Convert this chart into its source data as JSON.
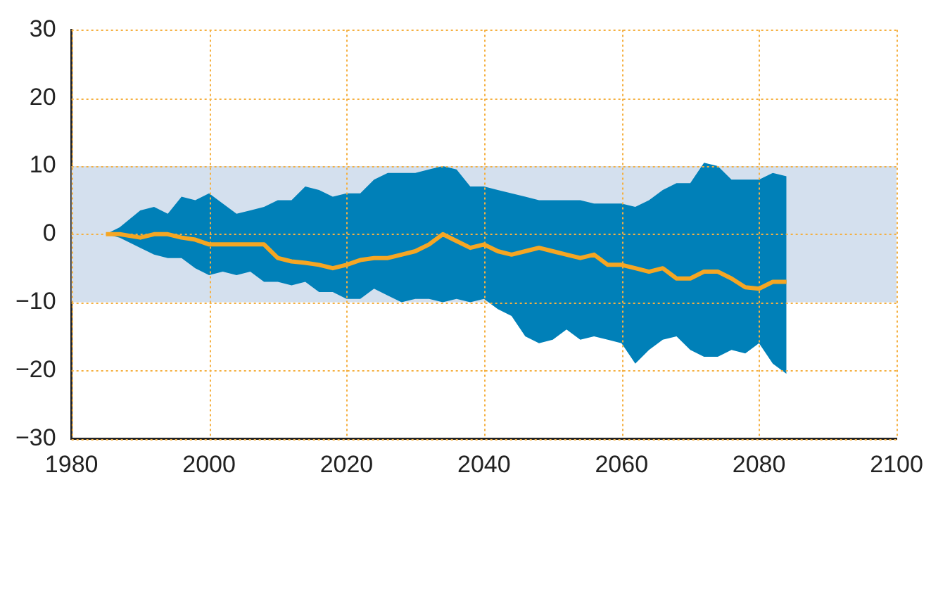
{
  "chart_data": {
    "type": "line",
    "xlim": [
      1980,
      2100
    ],
    "xticks": [
      1980,
      2000,
      2020,
      2040,
      2060,
      2080,
      2100
    ],
    "ylim": [
      -30,
      30
    ],
    "yticks": [
      -30,
      -20,
      -10,
      0,
      10,
      20,
      30
    ],
    "grid": true,
    "legend": false,
    "bands": [
      {
        "axis": "y",
        "from": -10,
        "to": 10,
        "color": "#d4e0ee"
      }
    ],
    "x": [
      1985,
      1987,
      1990,
      1992,
      1994,
      1996,
      1998,
      2000,
      2002,
      2004,
      2006,
      2008,
      2010,
      2012,
      2014,
      2016,
      2018,
      2020,
      2022,
      2024,
      2026,
      2028,
      2030,
      2032,
      2034,
      2036,
      2038,
      2040,
      2042,
      2044,
      2046,
      2048,
      2050,
      2052,
      2054,
      2056,
      2058,
      2060,
      2062,
      2064,
      2066,
      2068,
      2070,
      2072,
      2074,
      2076,
      2078,
      2080,
      2082,
      2084
    ],
    "series": [
      {
        "color": "#f5a623",
        "values": [
          0,
          0,
          -0.5,
          0,
          0,
          -0.5,
          -0.8,
          -1.5,
          -1.5,
          -1.5,
          -1.5,
          -1.5,
          -3.5,
          -4,
          -4.2,
          -4.5,
          -5,
          -4.5,
          -3.8,
          -3.5,
          -3.5,
          -3,
          -2.5,
          -1.5,
          0,
          -1,
          -2,
          -1.5,
          -2.5,
          -3,
          -2.5,
          -2,
          -2.5,
          -3,
          -3.5,
          -3,
          -4.5,
          -4.5,
          -5,
          -5.5,
          -5,
          -6.5,
          -6.5,
          -5.5,
          -5.5,
          -6.5,
          -7.8,
          -8,
          -7,
          -7
        ],
        "upper": [
          0,
          1,
          3.5,
          4,
          3,
          5.5,
          5,
          6,
          4.5,
          3,
          3.5,
          4,
          5,
          5,
          7,
          6.5,
          5.5,
          6,
          6,
          8,
          9,
          9,
          9,
          9.5,
          10,
          9.5,
          7,
          7,
          6.5,
          6,
          5.5,
          5,
          5,
          5,
          5,
          4.5,
          4.5,
          4.5,
          4,
          5,
          6.5,
          7.5,
          7.5,
          10.5,
          10,
          8,
          8,
          8,
          9,
          8.5
        ],
        "lower": [
          0,
          -0.5,
          -2,
          -3,
          -3.5,
          -3.5,
          -5,
          -6,
          -5.5,
          -6,
          -5.5,
          -7,
          -7,
          -7.5,
          -7,
          -8.5,
          -8.5,
          -9.5,
          -9.5,
          -8,
          -9,
          -10,
          -9.5,
          -9.5,
          -10,
          -9.5,
          -10,
          -9.5,
          -11,
          -12,
          -15,
          -16,
          -15.5,
          -14,
          -15.5,
          -15,
          -15.5,
          -16,
          -19,
          -17,
          -15.5,
          -15,
          -17,
          -18,
          -18,
          -17,
          -17.5,
          -16,
          -19,
          -20.5
        ]
      }
    ]
  }
}
